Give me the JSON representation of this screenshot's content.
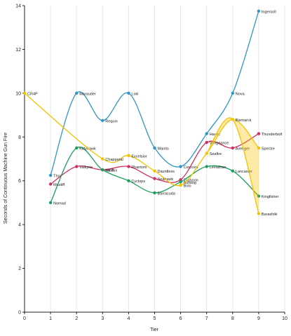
{
  "chart_data": {
    "type": "line",
    "title": "",
    "xlabel": "Tier",
    "ylabel": "Seconds of Continuous Machine Gun Fire",
    "xlim": [
      0,
      10
    ],
    "ylim": [
      0,
      14
    ],
    "x_ticks": [
      0,
      1,
      2,
      3,
      4,
      5,
      6,
      7,
      8,
      9,
      10
    ],
    "y_ticks": [
      0,
      2,
      4,
      6,
      8,
      10,
      12,
      14
    ],
    "grid": "vertical",
    "legend": "none",
    "series": [
      {
        "color": "#2e96c8",
        "points": [
          {
            "x": 1,
            "y": 6.25,
            "label": "Thor"
          },
          {
            "x": 2,
            "y": 10.0,
            "label": "Marauder"
          },
          {
            "x": 3,
            "y": 8.75,
            "label": "Requin"
          },
          {
            "x": 4,
            "y": 10.0,
            "label": "Loki"
          },
          {
            "x": 5,
            "y": 7.5,
            "label": "Mantis"
          },
          {
            "x": 6,
            "y": 6.65,
            "label": "Cerecea"
          },
          {
            "x": 7,
            "y": 8.15,
            "label": "Havoc"
          },
          {
            "x": 8,
            "y": 10.0,
            "label": "Nova"
          },
          {
            "x": 9,
            "y": 13.75,
            "label": "Ingersoll"
          }
        ]
      },
      {
        "color": "#d12f5e",
        "points": [
          {
            "x": 1,
            "y": 5.85,
            "label": "Mastiff"
          },
          {
            "x": 2,
            "y": 6.65,
            "label": "Valkyrie"
          },
          {
            "x": 3,
            "y": 6.5,
            "label": "Mk II"
          },
          {
            "x": 4,
            "y": 6.65,
            "label": "Phantom"
          },
          {
            "x": 5,
            "y": 6.1,
            "label": "Seahawk"
          },
          {
            "x": 6,
            "y": 6.05,
            "label": "Typhoon"
          },
          {
            "x": 7,
            "y": 7.75,
            "label": "Vengeance"
          },
          {
            "x": 8,
            "y": 7.5,
            "label": "Avenger"
          },
          {
            "x": 9,
            "y": 8.15,
            "label": "Thunderbolt"
          }
        ]
      },
      {
        "color": "#1aa05a",
        "points": [
          {
            "x": 1,
            "y": 5.0,
            "label": "Nomad"
          },
          {
            "x": 2,
            "y": 7.5,
            "label": "Kittyhawk"
          },
          {
            "x": 3,
            "y": 6.5,
            "label": "Halifax"
          },
          {
            "x": 4,
            "y": 6.0,
            "label": "Cyclops"
          },
          {
            "x": 5,
            "y": 5.45,
            "label": "Barracuda"
          },
          {
            "x": 6,
            "y": 5.95,
            "label": "Bulldog"
          },
          {
            "x": 7,
            "y": 6.65,
            "label": "Leviathan"
          },
          {
            "x": 8,
            "y": 6.45,
            "label": "Lancaster"
          },
          {
            "x": 9,
            "y": 5.3,
            "label": "Kingfisher"
          }
        ]
      },
      {
        "color": "#f5c200",
        "points": [
          {
            "x": 0,
            "y": 10.0,
            "label": "CR4P"
          },
          {
            "x": 3,
            "y": 7.0,
            "label": "Chapparal"
          },
          {
            "x": 4,
            "y": 7.15,
            "label": "Excelsior"
          },
          {
            "x": 5,
            "y": 6.45,
            "label": "Dauntless"
          },
          {
            "x": 6,
            "y": 5.8,
            "label": "Bolo"
          },
          {
            "x": 7,
            "y": 7.25,
            "label": "Seafire"
          },
          {
            "x": 8,
            "y": 8.8,
            "label": "Bismarck"
          },
          {
            "x": 9,
            "y": 7.5,
            "label": "Spectre"
          },
          {
            "x": 9,
            "y": 4.5,
            "label": "Barashiki"
          }
        ]
      }
    ]
  }
}
